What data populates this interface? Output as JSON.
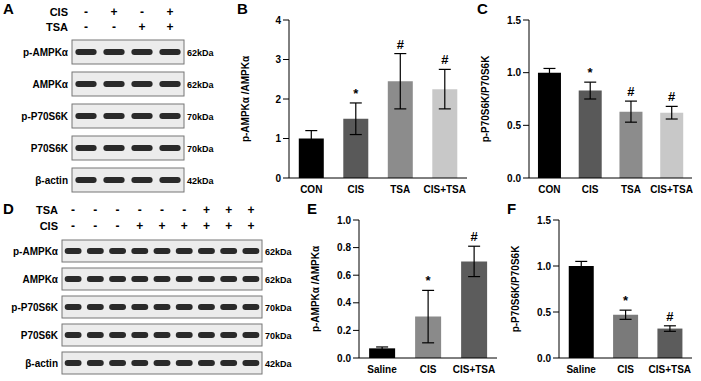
{
  "blots": [
    {
      "panel": "A",
      "treatments": [
        {
          "name": "CIS",
          "signs": [
            "-",
            "+",
            "-",
            "+"
          ]
        },
        {
          "name": "TSA",
          "signs": [
            "-",
            "-",
            "+",
            "+"
          ]
        }
      ],
      "rows": [
        {
          "label": "p-AMPKα",
          "size": "62kDa"
        },
        {
          "label": "AMPKα",
          "size": "62kDa"
        },
        {
          "label": "p-P70S6K",
          "size": "70kDa"
        },
        {
          "label": "P70S6K",
          "size": "70kDa"
        },
        {
          "label": "β-actin",
          "size": "42kDa"
        }
      ]
    },
    {
      "panel": "D",
      "treatments": [
        {
          "name": "TSA",
          "signs": [
            "-",
            "-",
            "-",
            "-",
            "-",
            "-",
            "+",
            "+",
            "+"
          ]
        },
        {
          "name": "CIS",
          "signs": [
            "-",
            "-",
            "-",
            "+",
            "+",
            "+",
            "+",
            "+",
            "+"
          ]
        }
      ],
      "rows": [
        {
          "label": "p-AMPKα",
          "size": "62kDa"
        },
        {
          "label": "AMPKα",
          "size": "62kDa"
        },
        {
          "label": "p-P70S6K",
          "size": "70kDa"
        },
        {
          "label": "P70S6K",
          "size": "70kDa"
        },
        {
          "label": "β-actin",
          "size": "42kDa"
        }
      ]
    }
  ],
  "chart_data": [
    {
      "panel": "B",
      "type": "bar",
      "y_label": "p-AMPKα /AMPKα",
      "categories": [
        "CON",
        "CIS",
        "TSA",
        "CIS+TSA"
      ],
      "values": [
        1.0,
        1.5,
        2.45,
        2.25
      ],
      "errors": [
        0.2,
        0.4,
        0.7,
        0.5
      ],
      "annotations": [
        null,
        "*",
        "#",
        "#"
      ],
      "colors": [
        "#000000",
        "#595959",
        "#8c8c8c",
        "#c8c8c8"
      ],
      "ylim": [
        0,
        4
      ],
      "yticks": [
        0,
        1,
        2,
        3,
        4
      ]
    },
    {
      "panel": "C",
      "type": "bar",
      "y_label": "p-P70S6K/P70S6K",
      "categories": [
        "CON",
        "CIS",
        "TSA",
        "CIS+TSA"
      ],
      "values": [
        1.0,
        0.83,
        0.63,
        0.62
      ],
      "errors": [
        0.04,
        0.08,
        0.1,
        0.06
      ],
      "annotations": [
        null,
        "*",
        "#",
        "#"
      ],
      "colors": [
        "#000000",
        "#595959",
        "#8c8c8c",
        "#c8c8c8"
      ],
      "ylim": [
        0,
        1.5
      ],
      "yticks": [
        {
          "value": 0,
          "label": "0.0"
        },
        0.5,
        {
          "value": 1,
          "label": "1.0"
        },
        1.5
      ]
    },
    {
      "panel": "E",
      "type": "bar",
      "y_label": "p-AMPKα /AMPKα",
      "categories": [
        "Saline",
        "CIS",
        "CIS+TSA"
      ],
      "values": [
        0.07,
        0.3,
        0.7
      ],
      "errors": [
        0.01,
        0.19,
        0.11
      ],
      "annotations": [
        null,
        "*",
        "#"
      ],
      "colors": [
        "#000000",
        "#8a8a8a",
        "#5c5c5c"
      ],
      "ylim": [
        0,
        1
      ],
      "yticks": [
        {
          "value": 0,
          "label": "0.0"
        },
        0.2,
        0.4,
        0.6,
        0.8,
        {
          "value": 1,
          "label": "1.0"
        }
      ]
    },
    {
      "panel": "F",
      "type": "bar",
      "y_label": "p-P70S6K/P70S6K",
      "categories": [
        "Saline",
        "CIS",
        "CIS+TSA"
      ],
      "values": [
        1.0,
        0.47,
        0.32
      ],
      "errors": [
        0.05,
        0.05,
        0.03
      ],
      "annotations": [
        null,
        "*",
        "#"
      ],
      "colors": [
        "#000000",
        "#7a7a7a",
        "#5c5c5c"
      ],
      "ylim": [
        0,
        1.5
      ],
      "yticks": [
        {
          "value": 0,
          "label": "0.0"
        },
        0.5,
        {
          "value": 1,
          "label": "1.0"
        },
        1.5
      ]
    }
  ]
}
